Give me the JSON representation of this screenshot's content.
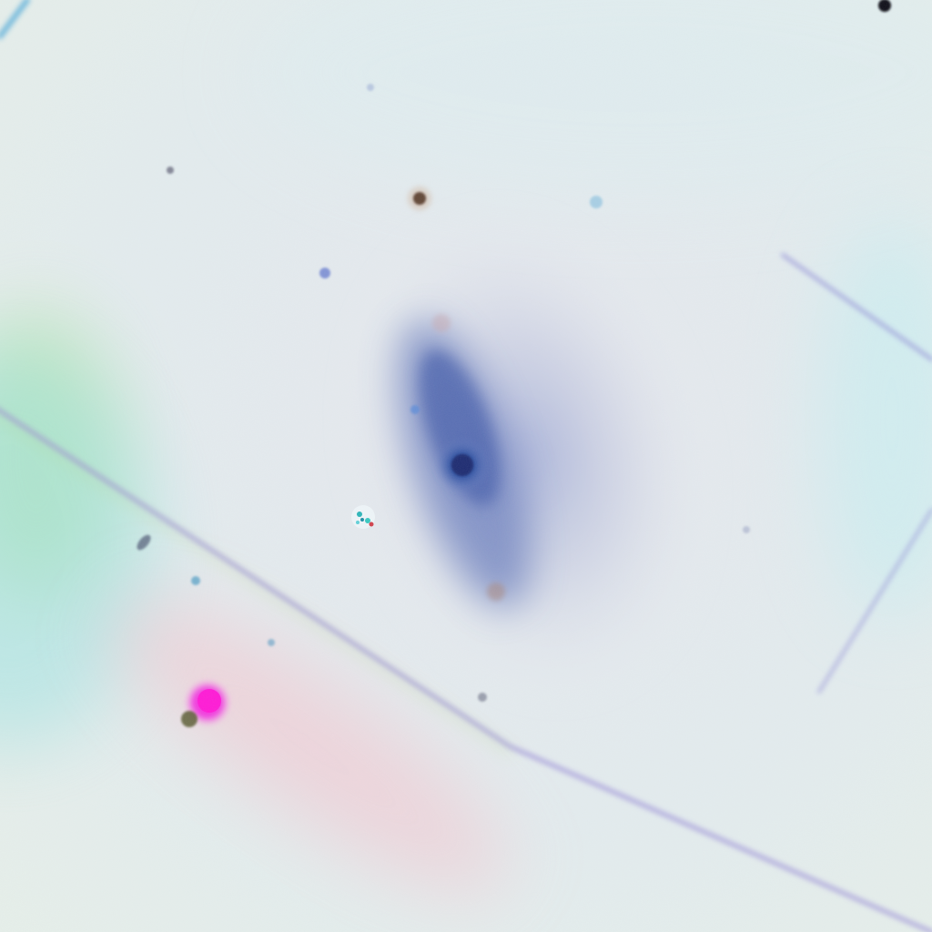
{
  "image": {
    "kind": "false-color astronomical image",
    "subject": "barred-spiral-galaxy",
    "colors": {
      "background": "#e8ebee",
      "cyan_glow": "#2bbde0",
      "green_glow": "#a8e07a",
      "galaxy_core": "#24418e",
      "galaxy_halo": "#a9b3d6",
      "edge_line": "#9a8fd8",
      "magenta_source": "#f02fe0",
      "pink_streak": "#f6c0c8"
    },
    "objects": [
      "galaxy-core",
      "galaxy-bar",
      "galaxy-halo",
      "cyan-edge-glow",
      "diagonal-edge-line",
      "magenta-point-source",
      "foreground-stars"
    ]
  }
}
